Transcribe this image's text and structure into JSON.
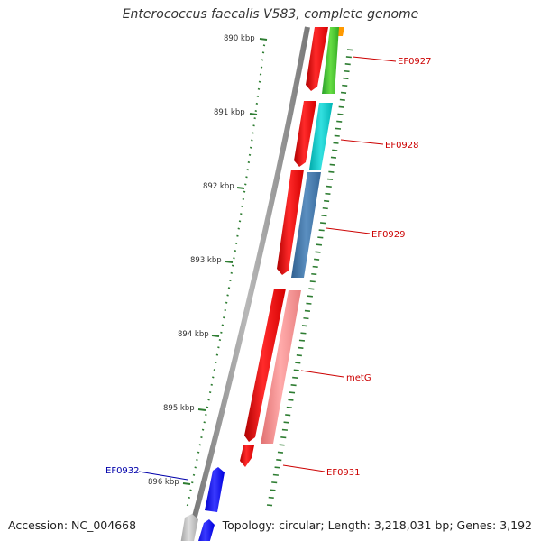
{
  "title": "Enterococcus faecalis V583, complete genome",
  "footer": {
    "accession": "Accession: NC_004668",
    "summary": "Topology: circular; Length: 3,218,031 bp; Genes: 3,192"
  },
  "ruler": {
    "unit": "kbp",
    "labels": [
      "890 kbp",
      "891 kbp",
      "892 kbp",
      "893 kbp",
      "894 kbp",
      "895 kbp",
      "896 kbp"
    ]
  },
  "genes": [
    {
      "name": "EF0927",
      "color": "#cc0000"
    },
    {
      "name": "EF0928",
      "color": "#cc0000"
    },
    {
      "name": "EF0929",
      "color": "#cc0000"
    },
    {
      "name": "metG",
      "color": "#cc0000"
    },
    {
      "name": "EF0931",
      "color": "#cc0000"
    },
    {
      "name": "EF0932",
      "color": "#0000aa"
    }
  ],
  "colors": {
    "backbone": "#8a8a8a",
    "cds": "#ff0000",
    "tick": "#2e7d32",
    "forward_strand": "#0000ff"
  }
}
